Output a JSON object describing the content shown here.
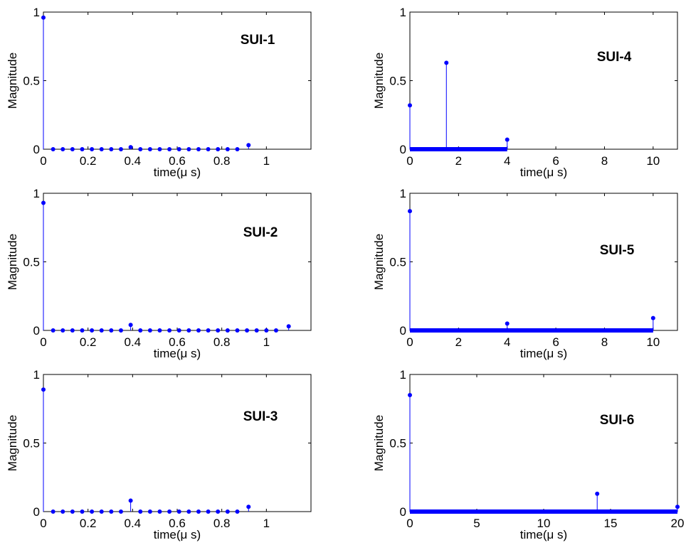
{
  "chart_data": [
    {
      "type": "stem",
      "title": "SUI-1",
      "xlabel": "time(μ s)",
      "ylabel": "Magnitude",
      "xlim": [
        0,
        1.2
      ],
      "ylim": [
        0,
        1
      ],
      "xticks": [
        0,
        0.2,
        0.4,
        0.6,
        0.8,
        1
      ],
      "xtick_labels": [
        "0",
        "0.2",
        "0.4",
        "0.6",
        "0.8",
        "1"
      ],
      "yticks": [
        0,
        0.5,
        1
      ],
      "ytick_labels": [
        "0",
        "0.5",
        "1"
      ],
      "color": "#0000ff",
      "x": [
        0,
        0.0435,
        0.087,
        0.1304,
        0.1739,
        0.2174,
        0.2609,
        0.3043,
        0.3478,
        0.3913,
        0.4348,
        0.4783,
        0.5217,
        0.5652,
        0.6087,
        0.6522,
        0.6957,
        0.7391,
        0.7826,
        0.8261,
        0.8696,
        0.92
      ],
      "y": [
        0.96,
        0,
        0,
        0,
        0,
        0,
        0,
        0,
        0,
        0.015,
        0,
        0,
        0,
        0,
        0,
        0,
        0,
        0,
        0,
        0,
        0,
        0.03
      ]
    },
    {
      "type": "stem",
      "title": "SUI-4",
      "xlabel": "time(μ s)",
      "ylabel": "Magnitude",
      "xlim": [
        0,
        11
      ],
      "ylim": [
        0,
        1
      ],
      "xticks": [
        0,
        2,
        4,
        6,
        8,
        10
      ],
      "xtick_labels": [
        "0",
        "2",
        "4",
        "6",
        "8",
        "10"
      ],
      "yticks": [
        0,
        0.5,
        1
      ],
      "ytick_labels": [
        "0",
        "0.5",
        "1"
      ],
      "color": "#0000ff",
      "dense_zero_range": [
        0,
        4
      ],
      "x": [
        0,
        1.5,
        4
      ],
      "y": [
        0.32,
        0.63,
        0.07
      ]
    },
    {
      "type": "stem",
      "title": "SUI-2",
      "xlabel": "time(μ s)",
      "ylabel": "Magnitude",
      "xlim": [
        0,
        1.2
      ],
      "ylim": [
        0,
        1
      ],
      "xticks": [
        0,
        0.2,
        0.4,
        0.6,
        0.8,
        1
      ],
      "xtick_labels": [
        "0",
        "0.2",
        "0.4",
        "0.6",
        "0.8",
        "1"
      ],
      "yticks": [
        0,
        0.5,
        1
      ],
      "ytick_labels": [
        "0",
        "0.5",
        "1"
      ],
      "color": "#0000ff",
      "x": [
        0,
        0.0435,
        0.087,
        0.1304,
        0.1739,
        0.2174,
        0.2609,
        0.3043,
        0.3478,
        0.3913,
        0.4348,
        0.4783,
        0.5217,
        0.5652,
        0.6087,
        0.6522,
        0.6957,
        0.7391,
        0.7826,
        0.8261,
        0.8696,
        0.913,
        0.9565,
        1.0,
        1.0435,
        1.1
      ],
      "y": [
        0.93,
        0,
        0,
        0,
        0,
        0,
        0,
        0,
        0,
        0.04,
        0,
        0,
        0,
        0,
        0,
        0,
        0,
        0,
        0,
        0,
        0,
        0,
        0,
        0,
        0,
        0.03
      ]
    },
    {
      "type": "stem",
      "title": "SUI-5",
      "xlabel": "time(μ s)",
      "ylabel": "Magnitude",
      "xlim": [
        0,
        11
      ],
      "ylim": [
        0,
        1
      ],
      "xticks": [
        0,
        2,
        4,
        6,
        8,
        10
      ],
      "xtick_labels": [
        "0",
        "2",
        "4",
        "6",
        "8",
        "10"
      ],
      "yticks": [
        0,
        0.5,
        1
      ],
      "ytick_labels": [
        "0",
        "0.5",
        "1"
      ],
      "color": "#0000ff",
      "dense_zero_range": [
        0,
        10
      ],
      "x": [
        0,
        4,
        10
      ],
      "y": [
        0.87,
        0.05,
        0.09
      ]
    },
    {
      "type": "stem",
      "title": "SUI-3",
      "xlabel": "time(μ s)",
      "ylabel": "Magnitude",
      "xlim": [
        0,
        1.2
      ],
      "ylim": [
        0,
        1
      ],
      "xticks": [
        0,
        0.2,
        0.4,
        0.6,
        0.8,
        1
      ],
      "xtick_labels": [
        "0",
        "0.2",
        "0.4",
        "0.6",
        "0.8",
        "1"
      ],
      "yticks": [
        0,
        0.5,
        1
      ],
      "ytick_labels": [
        "0",
        "0.5",
        "1"
      ],
      "color": "#0000ff",
      "x": [
        0,
        0.0435,
        0.087,
        0.1304,
        0.1739,
        0.2174,
        0.2609,
        0.3043,
        0.3478,
        0.3913,
        0.4348,
        0.4783,
        0.5217,
        0.5652,
        0.6087,
        0.6522,
        0.6957,
        0.7391,
        0.7826,
        0.8261,
        0.8696,
        0.92
      ],
      "y": [
        0.89,
        0,
        0,
        0,
        0,
        0,
        0,
        0,
        0,
        0.08,
        0,
        0,
        0,
        0,
        0,
        0,
        0,
        0,
        0,
        0,
        0,
        0.035
      ]
    },
    {
      "type": "stem",
      "title": "SUI-6",
      "xlabel": "time(μ s)",
      "ylabel": "Magnitude",
      "xlim": [
        0,
        20
      ],
      "ylim": [
        0,
        1
      ],
      "xticks": [
        0,
        5,
        10,
        15,
        20
      ],
      "xtick_labels": [
        "0",
        "5",
        "10",
        "15",
        "20"
      ],
      "yticks": [
        0,
        0.5,
        1
      ],
      "ytick_labels": [
        "0",
        "0.5",
        "1"
      ],
      "color": "#0000ff",
      "dense_zero_range": [
        0,
        20
      ],
      "x": [
        0,
        14,
        20
      ],
      "y": [
        0.85,
        0.13,
        0.035
      ]
    }
  ]
}
